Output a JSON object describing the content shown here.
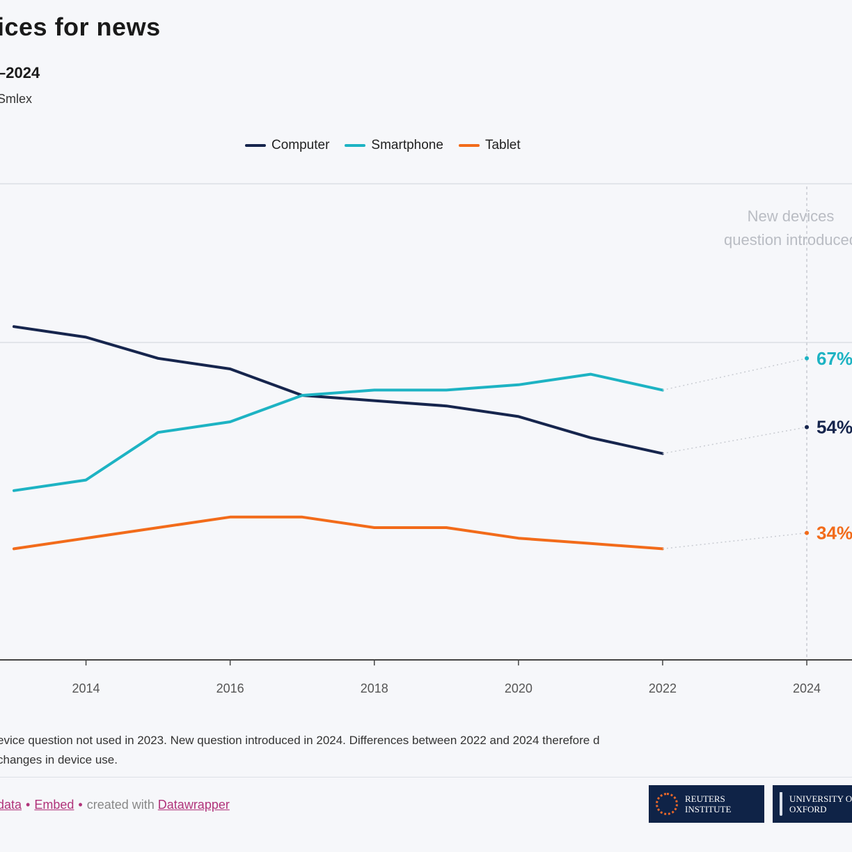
{
  "header": {
    "title": "ices for news",
    "subtitle": "–2024",
    "source": "Smlex"
  },
  "colors": {
    "computer": "#16254d",
    "smartphone": "#1db3c3",
    "tablet": "#f26b1a",
    "grid": "#e2e5ea",
    "axis": "#444444"
  },
  "chart_data": {
    "type": "line",
    "x": [
      2013,
      2014,
      2015,
      2016,
      2017,
      2018,
      2019,
      2020,
      2021,
      2022
    ],
    "series": [
      {
        "name": "Computer",
        "key": "computer",
        "values": [
          73,
          71,
          67,
          65,
          60,
          59,
          58,
          56,
          52,
          49
        ],
        "final": 54,
        "final_label": "54%"
      },
      {
        "name": "Smartphone",
        "key": "smartphone",
        "values": [
          42,
          44,
          53,
          55,
          60,
          61,
          61,
          62,
          64,
          61
        ],
        "final": 67,
        "final_label": "67%"
      },
      {
        "name": "Tablet",
        "key": "tablet",
        "values": [
          31,
          33,
          35,
          37,
          37,
          35,
          35,
          33,
          32,
          31
        ],
        "final": 34,
        "final_label": "34%"
      }
    ],
    "final_year": 2024,
    "x_ticks": [
      "2014",
      "2016",
      "2018",
      "2020",
      "2022",
      "2024"
    ],
    "x_tick_values": [
      2014,
      2016,
      2018,
      2020,
      2022,
      2024
    ],
    "ylim": [
      10,
      100
    ],
    "y_grid": [
      70,
      100
    ],
    "annotation": "New devices question introduced",
    "legend_position": "top"
  },
  "footnote": {
    "line1": "evice question not used in 2023. New question introduced in 2024. Differences between 2022 and 2024 therefore d",
    "line2": "changes in device use."
  },
  "footer": {
    "link_data": "data",
    "link_embed": "Embed",
    "created_text": "created with",
    "link_tool": "Datawrapper"
  },
  "logos": {
    "reuters": "REUTERS\nINSTITUTE",
    "oxford": "UNIVERSITY OF\nOXFORD"
  }
}
